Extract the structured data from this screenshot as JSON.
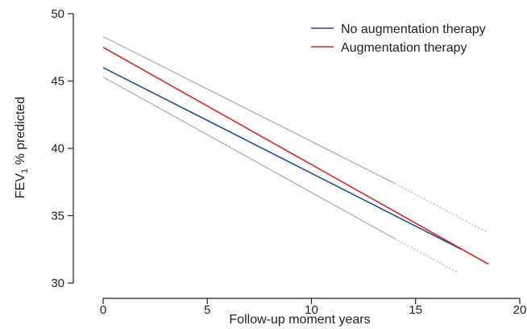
{
  "chart_data": {
    "type": "line",
    "xlabel": "Follow-up moment years",
    "ylabel_main": "FEV",
    "ylabel_sub": "1",
    "ylabel_rest": " % predicted",
    "xlim": [
      0,
      20
    ],
    "ylim": [
      30,
      50
    ],
    "xticks": [
      "0",
      "5",
      "10",
      "15",
      "20"
    ],
    "yticks": [
      "30",
      "35",
      "40",
      "45",
      "50"
    ],
    "grid": false,
    "legend_placement": "top-right",
    "series": [
      {
        "name": "No augmentation therapy",
        "color": "#1f4e9a",
        "x": [
          0,
          17.2
        ],
        "y": [
          46.0,
          32.5
        ]
      },
      {
        "name": "Augmentation therapy",
        "color": "#d42a2a",
        "x": [
          0,
          18.5
        ],
        "y": [
          47.5,
          31.4
        ]
      }
    ],
    "confidence_bounds": {
      "color": "#b8b8b8",
      "upper": {
        "solid_x": [
          0,
          14
        ],
        "solid_y": [
          48.3,
          37.4
        ],
        "dotted_x": [
          14,
          18.4
        ],
        "dotted_y": [
          37.4,
          33.8
        ]
      },
      "lower": {
        "solid_x": [
          0,
          14
        ],
        "solid_y": [
          45.3,
          33.3
        ],
        "dotted_x": [
          14,
          17.0
        ],
        "dotted_y": [
          33.3,
          30.8
        ]
      }
    }
  }
}
